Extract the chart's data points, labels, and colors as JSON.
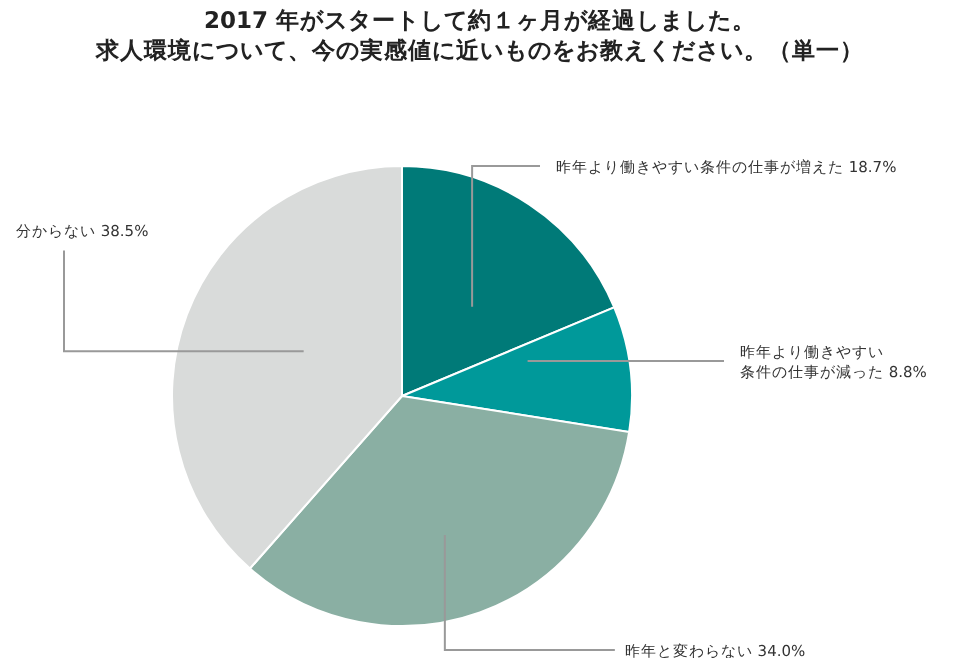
{
  "chart_data": {
    "type": "pie",
    "title": "2017 年がスタートして約１ヶ月が経過しました。",
    "subtitle": "求人環境について、今の実感値に近いものをお教えください。（単一）",
    "categories": [
      "昨年より働きやすい条件の仕事が増えた",
      "昨年より働きやすい条件の仕事が減った",
      "昨年と変わらない",
      "分からない"
    ],
    "values": [
      18.7,
      8.8,
      34.0,
      38.5
    ],
    "value_labels": [
      "18.7%",
      "8.8%",
      "34.0%",
      "38.5%"
    ],
    "colors": [
      "#007a78",
      "#00999a",
      "#8aafa3",
      "#d9dbda"
    ]
  }
}
